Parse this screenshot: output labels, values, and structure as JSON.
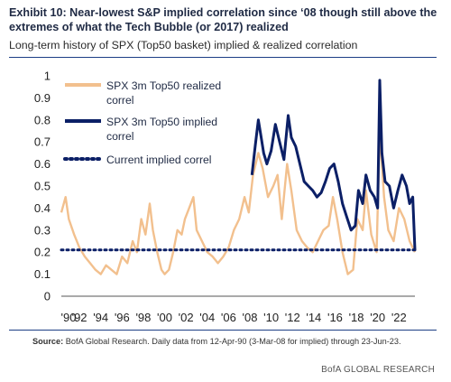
{
  "header": {
    "title": "Exhibit 10: Near-lowest S&P implied correlation since ‘08 though still above the extremes of what the Tech Bubble (or 2017) realized",
    "subtitle": "Long-term history of SPX (Top50 basket) implied & realized correlation"
  },
  "footer": {
    "source_label": "Source:",
    "source_text": " BofA Global Research.  Daily data from 12-Apr-90 (3-Mar-08 for implied) through 23-Jun-23.",
    "brand": "BofA GLOBAL RESEARCH"
  },
  "colors": {
    "realized": "#f2c08e",
    "implied": "#0b1f66",
    "current": "#0b1f66",
    "rule": "#1c3e85"
  },
  "chart_data": {
    "type": "line",
    "title": "",
    "xlabel": "",
    "ylabel": "",
    "ylim": [
      0,
      1
    ],
    "y_ticks": [
      "0",
      "0.1",
      "0.2",
      "0.3",
      "0.4",
      "0.5",
      "0.6",
      "0.7",
      "0.8",
      "0.9",
      "1"
    ],
    "x_ticks": [
      "'90",
      "'92",
      "'94",
      "'96",
      "'98",
      "'00",
      "'02",
      "'04",
      "'06",
      "'08",
      "'10",
      "'12",
      "'14",
      "'16",
      "'18",
      "'20",
      "'22"
    ],
    "xlim": [
      1990.3,
      2023.5
    ],
    "legend_position": "top-left",
    "grid": false,
    "series": [
      {
        "name": "SPX 3m Top50 realized correl",
        "style": "line",
        "x": [
          1990.3,
          1990.7,
          1991.0,
          1991.5,
          1992.0,
          1992.5,
          1993.0,
          1993.5,
          1994.0,
          1994.5,
          1995.0,
          1995.5,
          1996.0,
          1996.5,
          1997.0,
          1997.4,
          1997.8,
          1998.2,
          1998.6,
          1998.9,
          1999.3,
          1999.7,
          2000.0,
          2000.4,
          2000.8,
          2001.2,
          2001.6,
          2001.9,
          2002.3,
          2002.7,
          2003.0,
          2003.5,
          2004.0,
          2004.5,
          2005.0,
          2005.5,
          2006.0,
          2006.5,
          2007.0,
          2007.5,
          2007.9,
          2008.3,
          2008.8,
          2009.2,
          2009.7,
          2010.2,
          2010.6,
          2011.0,
          2011.5,
          2011.9,
          2012.4,
          2012.9,
          2013.4,
          2013.9,
          2014.4,
          2014.9,
          2015.4,
          2015.8,
          2016.2,
          2016.7,
          2017.2,
          2017.7,
          2018.1,
          2018.6,
          2018.9,
          2019.4,
          2019.9,
          2020.2,
          2020.6,
          2021.0,
          2021.5,
          2022.0,
          2022.5,
          2023.0,
          2023.5
        ],
        "y": [
          0.38,
          0.45,
          0.35,
          0.28,
          0.22,
          0.18,
          0.15,
          0.12,
          0.1,
          0.14,
          0.12,
          0.1,
          0.18,
          0.15,
          0.25,
          0.2,
          0.35,
          0.28,
          0.42,
          0.3,
          0.2,
          0.12,
          0.1,
          0.12,
          0.2,
          0.3,
          0.28,
          0.35,
          0.4,
          0.45,
          0.3,
          0.25,
          0.2,
          0.18,
          0.15,
          0.18,
          0.22,
          0.3,
          0.35,
          0.45,
          0.38,
          0.55,
          0.65,
          0.58,
          0.45,
          0.5,
          0.55,
          0.35,
          0.6,
          0.48,
          0.3,
          0.25,
          0.22,
          0.2,
          0.25,
          0.3,
          0.32,
          0.45,
          0.35,
          0.2,
          0.1,
          0.12,
          0.35,
          0.3,
          0.48,
          0.28,
          0.2,
          0.75,
          0.45,
          0.3,
          0.25,
          0.4,
          0.35,
          0.25,
          0.2
        ]
      },
      {
        "name": "SPX 3m Top50 implied correl",
        "style": "line",
        "x": [
          2008.2,
          2008.5,
          2008.8,
          2009.0,
          2009.3,
          2009.6,
          2010.0,
          2010.4,
          2010.8,
          2011.2,
          2011.6,
          2011.9,
          2012.3,
          2012.7,
          2013.1,
          2013.5,
          2013.9,
          2014.3,
          2014.7,
          2015.1,
          2015.5,
          2015.9,
          2016.3,
          2016.7,
          2017.1,
          2017.5,
          2017.9,
          2018.2,
          2018.6,
          2018.9,
          2019.3,
          2019.7,
          2020.0,
          2020.2,
          2020.4,
          2020.7,
          2021.1,
          2021.5,
          2021.9,
          2022.3,
          2022.7,
          2023.0,
          2023.3,
          2023.5
        ],
        "y": [
          0.55,
          0.68,
          0.8,
          0.74,
          0.65,
          0.6,
          0.66,
          0.78,
          0.7,
          0.62,
          0.82,
          0.72,
          0.68,
          0.6,
          0.52,
          0.5,
          0.48,
          0.45,
          0.47,
          0.52,
          0.58,
          0.6,
          0.52,
          0.42,
          0.36,
          0.3,
          0.32,
          0.48,
          0.42,
          0.55,
          0.48,
          0.45,
          0.4,
          0.98,
          0.65,
          0.52,
          0.5,
          0.4,
          0.48,
          0.55,
          0.5,
          0.42,
          0.45,
          0.21
        ]
      },
      {
        "name": "Current implied correl",
        "style": "dotted-horizontal",
        "x": [
          1990.3,
          2023.5
        ],
        "y": [
          0.21,
          0.21
        ]
      }
    ]
  }
}
